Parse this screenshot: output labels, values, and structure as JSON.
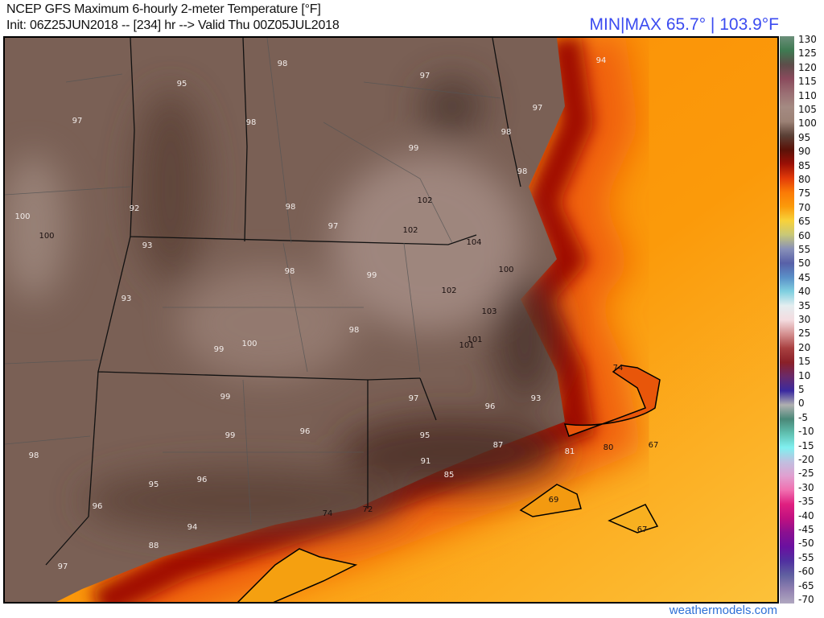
{
  "header": {
    "title": "NCEP GFS Maximum 6-hourly 2-meter Temperature [°F]",
    "subtitle": "Init: 06Z25JUN2018 -- [234] hr --> Valid Thu 00Z05JUL2018",
    "minmax": "MIN|MAX 65.7° | 103.9°F"
  },
  "colorbar": {
    "unit": "°F",
    "labels": [
      "130",
      "125",
      "120",
      "115",
      "110",
      "105",
      "100",
      "95",
      "90",
      "85",
      "80",
      "75",
      "70",
      "65",
      "60",
      "55",
      "50",
      "45",
      "40",
      "35",
      "30",
      "25",
      "20",
      "15",
      "10",
      "5",
      "0",
      "-5",
      "-10",
      "-15",
      "-20",
      "-25",
      "-30",
      "-35",
      "-40",
      "-45",
      "-50",
      "-55",
      "-60",
      "-65",
      "-70"
    ],
    "colors": [
      "#6b8f7a",
      "#3f7a52",
      "#5d4d4a",
      "#8a4a5c",
      "#9a6e73",
      "#a48a82",
      "#9c8276",
      "#5a4036",
      "#5a1208",
      "#9a1006",
      "#e23a08",
      "#fb7a06",
      "#fb9a0a",
      "#f8d23a",
      "#c8c878",
      "#8890b8",
      "#5860a8",
      "#5a90c8",
      "#80d0e0",
      "#e4eef0",
      "#f4dce0",
      "#d49090",
      "#a84040",
      "#8a2028",
      "#6a2a6a",
      "#3a2aa0",
      "#b0b0b0",
      "#4a8878",
      "#60c0b0",
      "#80f0f0",
      "#c0c0e0",
      "#e0a0d0",
      "#f070b0",
      "#e02080",
      "#c01080",
      "#8a1090",
      "#6a10a0",
      "#5030a0",
      "#6060a0",
      "#9080b0",
      "#b0a8c0"
    ]
  },
  "map": {
    "land_color": "#7a6055",
    "sea_color": "#fb9a0a",
    "coast_color": "#8a0c06",
    "values": [
      "95",
      "97",
      "98",
      "98",
      "97",
      "94",
      "97",
      "98",
      "99",
      "98",
      "92",
      "100",
      "100",
      "98",
      "97",
      "102",
      "102",
      "104",
      "93",
      "98",
      "99",
      "100",
      "102",
      "93",
      "103",
      "98",
      "101",
      "101",
      "99",
      "100",
      "97",
      "96",
      "93",
      "99",
      "96",
      "99",
      "95",
      "87",
      "91",
      "85",
      "81",
      "80",
      "74",
      "67",
      "98",
      "95",
      "96",
      "96",
      "94",
      "74",
      "72",
      "88",
      "97",
      "69",
      "67"
    ]
  },
  "footer": "weathermodels.com"
}
